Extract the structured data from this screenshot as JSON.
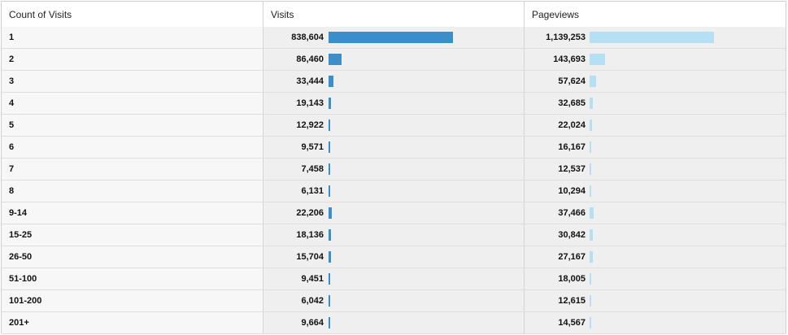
{
  "columns": [
    "Count of Visits",
    "Visits",
    "Pageviews"
  ],
  "colors": {
    "visits_bar": "#3a8fcb",
    "pageviews_bar": "#b5dff3"
  },
  "rows": [
    {
      "label": "1",
      "visits": "838,604",
      "visits_value": 838604,
      "pageviews": "1,139,253",
      "pageviews_value": 1139253
    },
    {
      "label": "2",
      "visits": "86,460",
      "visits_value": 86460,
      "pageviews": "143,693",
      "pageviews_value": 143693
    },
    {
      "label": "3",
      "visits": "33,444",
      "visits_value": 33444,
      "pageviews": "57,624",
      "pageviews_value": 57624
    },
    {
      "label": "4",
      "visits": "19,143",
      "visits_value": 19143,
      "pageviews": "32,685",
      "pageviews_value": 32685
    },
    {
      "label": "5",
      "visits": "12,922",
      "visits_value": 12922,
      "pageviews": "22,024",
      "pageviews_value": 22024
    },
    {
      "label": "6",
      "visits": "9,571",
      "visits_value": 9571,
      "pageviews": "16,167",
      "pageviews_value": 16167
    },
    {
      "label": "7",
      "visits": "7,458",
      "visits_value": 7458,
      "pageviews": "12,537",
      "pageviews_value": 12537
    },
    {
      "label": "8",
      "visits": "6,131",
      "visits_value": 6131,
      "pageviews": "10,294",
      "pageviews_value": 10294
    },
    {
      "label": "9-14",
      "visits": "22,206",
      "visits_value": 22206,
      "pageviews": "37,466",
      "pageviews_value": 37466
    },
    {
      "label": "15-25",
      "visits": "18,136",
      "visits_value": 18136,
      "pageviews": "30,842",
      "pageviews_value": 30842
    },
    {
      "label": "26-50",
      "visits": "15,704",
      "visits_value": 15704,
      "pageviews": "27,167",
      "pageviews_value": 27167
    },
    {
      "label": "51-100",
      "visits": "9,451",
      "visits_value": 9451,
      "pageviews": "18,005",
      "pageviews_value": 18005
    },
    {
      "label": "101-200",
      "visits": "6,042",
      "visits_value": 6042,
      "pageviews": "12,615",
      "pageviews_value": 12615
    },
    {
      "label": "201+",
      "visits": "9,664",
      "visits_value": 9664,
      "pageviews": "14,567",
      "pageviews_value": 14567
    }
  ]
}
